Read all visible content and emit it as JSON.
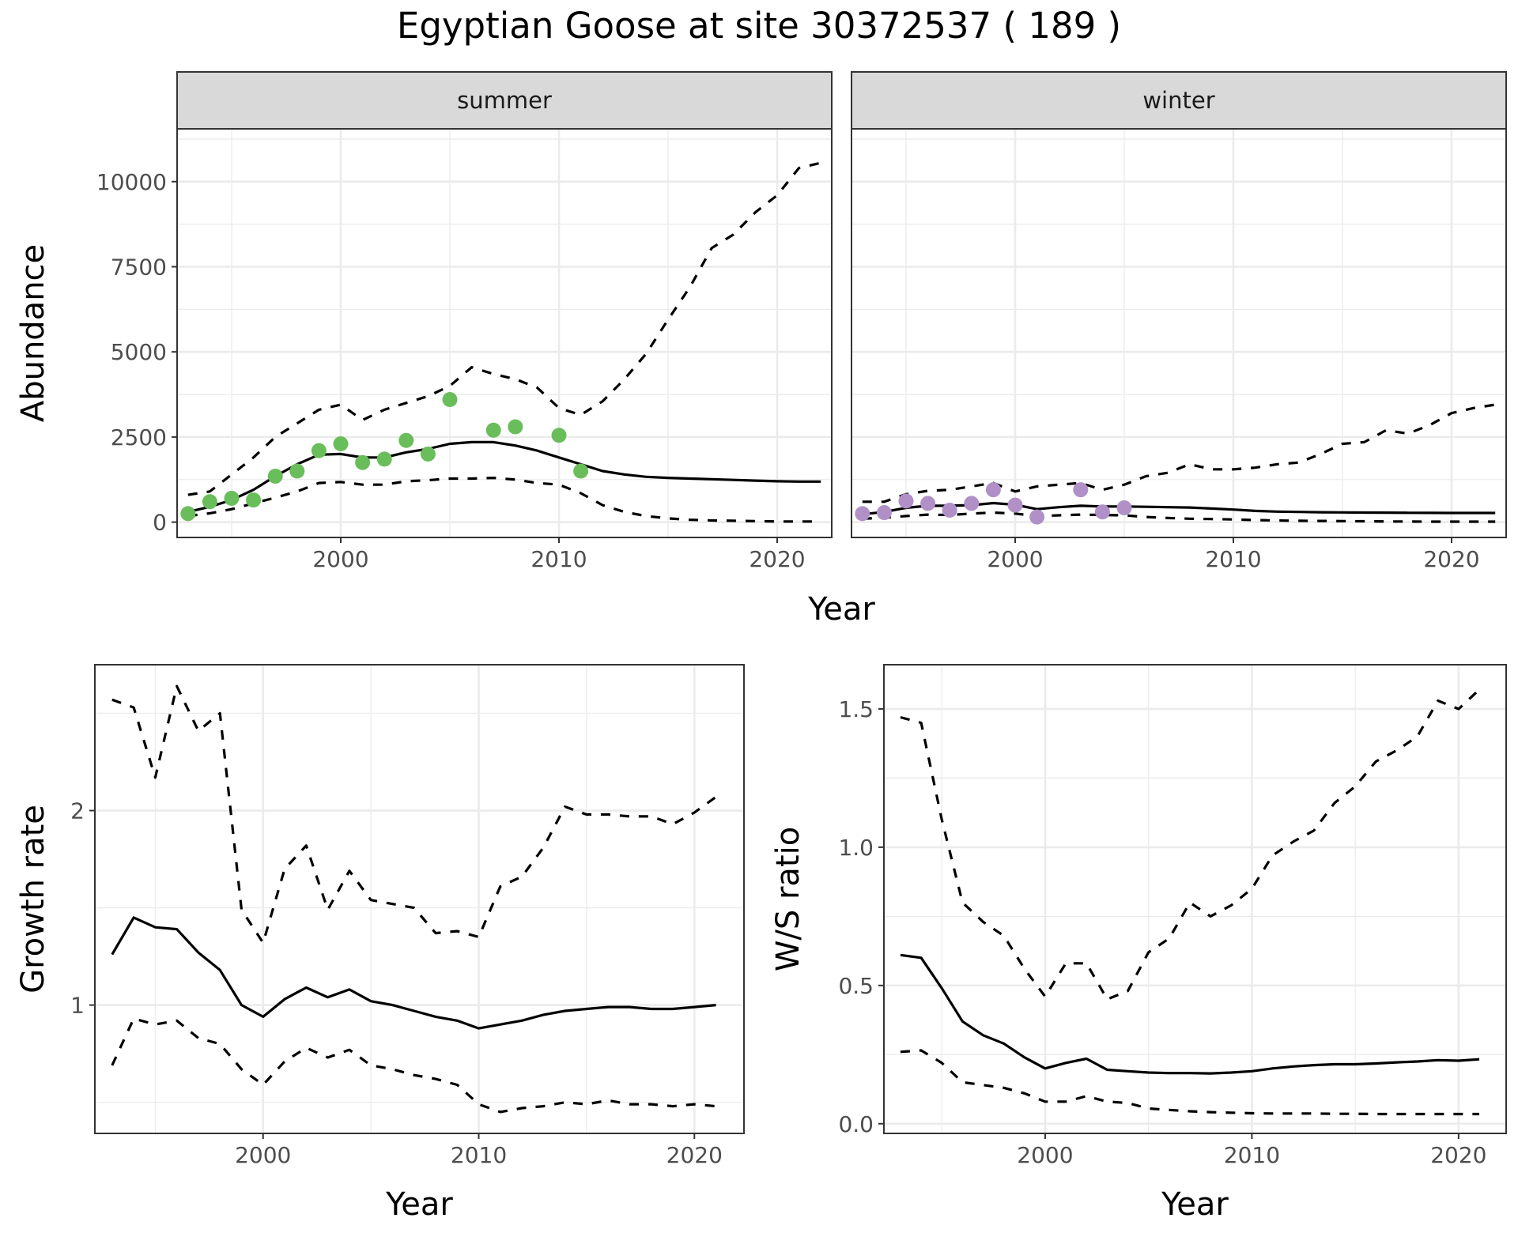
{
  "title": "Egyptian Goose at site 30372537 ( 189 )",
  "chart_data": [
    {
      "type": "line",
      "panel": "abundance",
      "facets": [
        "summer",
        "winter"
      ],
      "xlabel": "Year",
      "ylabel": "Abundance",
      "xlim": [
        1992.5,
        2022.5
      ],
      "ylim": [
        -450,
        11550
      ],
      "x_ticks": [
        2000,
        2010,
        2020
      ],
      "y_ticks": [
        0,
        2500,
        5000,
        7500,
        10000
      ],
      "grid": true,
      "facet_data": [
        {
          "facet": "summer",
          "point_color": "#6abd5b",
          "observed": {
            "x": [
              1993,
              1994,
              1995,
              1996,
              1997,
              1998,
              1999,
              2000,
              2001,
              2002,
              2003,
              2004,
              2005,
              2007,
              2008,
              2010,
              2011
            ],
            "y": [
              250,
              600,
              700,
              650,
              1350,
              1500,
              2100,
              2300,
              1750,
              1850,
              2400,
              2000,
              3600,
              2700,
              2800,
              2550,
              1500
            ]
          },
          "fit": {
            "x": [
              1993,
              1994,
              1995,
              1996,
              1997,
              1998,
              1999,
              2000,
              2001,
              2002,
              2003,
              2004,
              2005,
              2006,
              2007,
              2008,
              2009,
              2010,
              2011,
              2012,
              2013,
              2014,
              2015,
              2016,
              2017,
              2018,
              2019,
              2020,
              2021,
              2022
            ],
            "y": [
              300,
              450,
              650,
              950,
              1350,
              1700,
              1980,
              2000,
              1900,
              1900,
              2050,
              2150,
              2300,
              2350,
              2350,
              2250,
              2100,
              1900,
              1700,
              1500,
              1400,
              1330,
              1300,
              1280,
              1260,
              1240,
              1220,
              1200,
              1190,
              1190
            ]
          },
          "lower": {
            "x": [
              1993,
              1994,
              1995,
              1996,
              1997,
              1998,
              1999,
              2000,
              2001,
              2002,
              2003,
              2004,
              2005,
              2006,
              2007,
              2008,
              2009,
              2010,
              2011,
              2012,
              2013,
              2014,
              2015,
              2016,
              2017,
              2018,
              2019,
              2020,
              2021,
              2022
            ],
            "y": [
              180,
              260,
              380,
              550,
              720,
              900,
              1150,
              1180,
              1100,
              1100,
              1200,
              1230,
              1280,
              1280,
              1300,
              1250,
              1150,
              1100,
              850,
              500,
              300,
              180,
              110,
              70,
              50,
              40,
              30,
              20,
              20,
              20
            ]
          },
          "upper": {
            "x": [
              1993,
              1994,
              1995,
              1996,
              1997,
              1998,
              1999,
              2000,
              2001,
              2002,
              2003,
              2004,
              2005,
              2006,
              2007,
              2008,
              2009,
              2010,
              2011,
              2012,
              2013,
              2014,
              2015,
              2016,
              2017,
              2018,
              2019,
              2020,
              2021,
              2022
            ],
            "y": [
              800,
              900,
              1400,
              1900,
              2500,
              2900,
              3300,
              3450,
              3000,
              3300,
              3500,
              3700,
              4000,
              4550,
              4350,
              4200,
              3950,
              3350,
              3150,
              3550,
              4200,
              4950,
              5950,
              6900,
              8050,
              8450,
              9100,
              9600,
              10400,
              10550
            ]
          }
        },
        {
          "facet": "winter",
          "point_color": "#b190c7",
          "observed": {
            "x": [
              1993,
              1994,
              1995,
              1996,
              1997,
              1998,
              1999,
              2000,
              2001,
              2003,
              2004,
              2005
            ],
            "y": [
              250,
              280,
              620,
              550,
              350,
              550,
              950,
              500,
              150,
              950,
              300,
              420
            ]
          },
          "fit": {
            "x": [
              1993,
              1994,
              1995,
              1996,
              1997,
              1998,
              1999,
              2000,
              2001,
              2002,
              2003,
              2004,
              2005,
              2006,
              2007,
              2008,
              2009,
              2010,
              2011,
              2012,
              2013,
              2014,
              2015,
              2016,
              2017,
              2018,
              2019,
              2020,
              2021,
              2022
            ],
            "y": [
              230,
              300,
              420,
              480,
              480,
              500,
              560,
              510,
              380,
              440,
              480,
              460,
              460,
              450,
              440,
              430,
              400,
              370,
              330,
              310,
              300,
              290,
              285,
              280,
              278,
              275,
              272,
              270,
              270,
              270
            ]
          },
          "lower": {
            "x": [
              1993,
              1994,
              1995,
              1996,
              1997,
              1998,
              1999,
              2000,
              2001,
              2002,
              2003,
              2004,
              2005,
              2006,
              2007,
              2008,
              2009,
              2010,
              2011,
              2012,
              2013,
              2014,
              2015,
              2016,
              2017,
              2018,
              2019,
              2020,
              2021,
              2022
            ],
            "y": [
              100,
              130,
              180,
              220,
              210,
              250,
              280,
              250,
              180,
              200,
              220,
              210,
              200,
              150,
              120,
              100,
              90,
              80,
              60,
              50,
              40,
              35,
              30,
              25,
              20,
              20,
              15,
              15,
              15,
              15
            ]
          },
          "upper": {
            "x": [
              1993,
              1994,
              1995,
              1996,
              1997,
              1998,
              1999,
              2000,
              2001,
              2002,
              2003,
              2004,
              2005,
              2006,
              2007,
              2008,
              2009,
              2010,
              2011,
              2012,
              2013,
              2014,
              2015,
              2016,
              2017,
              2018,
              2019,
              2020,
              2021,
              2022
            ],
            "y": [
              600,
              600,
              820,
              920,
              950,
              1050,
              1150,
              900,
              1050,
              1100,
              1150,
              950,
              1100,
              1350,
              1450,
              1700,
              1550,
              1550,
              1600,
              1700,
              1750,
              2000,
              2300,
              2350,
              2700,
              2600,
              2850,
              3200,
              3350,
              3450
            ]
          }
        }
      ]
    },
    {
      "type": "line",
      "panel": "growth",
      "xlabel": "Year",
      "ylabel": "Growth rate",
      "xlim": [
        1992.2,
        2022.3
      ],
      "ylim": [
        0.34,
        2.75
      ],
      "x_ticks": [
        2000,
        2010,
        2020
      ],
      "y_ticks": [
        1,
        2
      ],
      "grid": true,
      "fit": {
        "x": [
          1993,
          1994,
          1995,
          1996,
          1997,
          1998,
          1999,
          2000,
          2001,
          2002,
          2003,
          2004,
          2005,
          2006,
          2007,
          2008,
          2009,
          2010,
          2011,
          2012,
          2013,
          2014,
          2015,
          2016,
          2017,
          2018,
          2019,
          2020,
          2021
        ],
        "y": [
          1.26,
          1.45,
          1.4,
          1.39,
          1.27,
          1.18,
          1.0,
          0.94,
          1.03,
          1.09,
          1.04,
          1.08,
          1.02,
          1.0,
          0.97,
          0.94,
          0.92,
          0.88,
          0.9,
          0.92,
          0.95,
          0.97,
          0.98,
          0.99,
          0.99,
          0.98,
          0.98,
          0.99,
          1.0
        ]
      },
      "lower": {
        "x": [
          1993,
          1994,
          1995,
          1996,
          1997,
          1998,
          1999,
          2000,
          2001,
          2002,
          2003,
          2004,
          2005,
          2006,
          2007,
          2008,
          2009,
          2010,
          2011,
          2012,
          2013,
          2014,
          2015,
          2016,
          2017,
          2018,
          2019,
          2020,
          2021
        ],
        "y": [
          0.69,
          0.93,
          0.9,
          0.92,
          0.83,
          0.8,
          0.67,
          0.59,
          0.71,
          0.78,
          0.73,
          0.77,
          0.69,
          0.67,
          0.64,
          0.62,
          0.59,
          0.49,
          0.45,
          0.47,
          0.48,
          0.5,
          0.49,
          0.51,
          0.49,
          0.49,
          0.48,
          0.49,
          0.48
        ]
      },
      "upper": {
        "x": [
          1993,
          1994,
          1995,
          1996,
          1997,
          1998,
          1999,
          2000,
          2001,
          2002,
          2003,
          2004,
          2005,
          2006,
          2007,
          2008,
          2009,
          2010,
          2011,
          2012,
          2013,
          2014,
          2015,
          2016,
          2017,
          2018,
          2019,
          2020,
          2021
        ],
        "y": [
          2.57,
          2.53,
          2.17,
          2.64,
          2.41,
          2.5,
          1.49,
          1.32,
          1.7,
          1.82,
          1.49,
          1.69,
          1.54,
          1.52,
          1.5,
          1.37,
          1.38,
          1.35,
          1.61,
          1.66,
          1.81,
          2.02,
          1.98,
          1.98,
          1.97,
          1.97,
          1.93,
          1.99,
          2.07
        ]
      }
    },
    {
      "type": "line",
      "panel": "ratio",
      "xlabel": "Year",
      "ylabel": "W/S ratio",
      "xlim": [
        1992.2,
        2022.3
      ],
      "ylim": [
        -0.035,
        1.66
      ],
      "x_ticks": [
        2000,
        2010,
        2020
      ],
      "y_ticks": [
        0.0,
        0.5,
        1.0,
        1.5
      ],
      "y_tick_labels": [
        "0.0",
        "0.5",
        "1.0",
        "1.5"
      ],
      "grid": true,
      "fit": {
        "x": [
          1993,
          1994,
          1995,
          1996,
          1997,
          1998,
          1999,
          2000,
          2001,
          2002,
          2003,
          2004,
          2005,
          2006,
          2007,
          2008,
          2009,
          2010,
          2011,
          2012,
          2013,
          2014,
          2015,
          2016,
          2017,
          2018,
          2019,
          2020,
          2021
        ],
        "y": [
          0.61,
          0.6,
          0.49,
          0.37,
          0.32,
          0.29,
          0.24,
          0.2,
          0.22,
          0.235,
          0.195,
          0.19,
          0.185,
          0.183,
          0.183,
          0.182,
          0.185,
          0.19,
          0.2,
          0.207,
          0.212,
          0.215,
          0.215,
          0.218,
          0.222,
          0.225,
          0.23,
          0.228,
          0.233
        ]
      },
      "lower": {
        "x": [
          1993,
          1994,
          1995,
          1996,
          1997,
          1998,
          1999,
          2000,
          2001,
          2002,
          2003,
          2004,
          2005,
          2006,
          2007,
          2008,
          2009,
          2010,
          2011,
          2012,
          2013,
          2014,
          2015,
          2016,
          2017,
          2018,
          2019,
          2020,
          2021
        ],
        "y": [
          0.26,
          0.265,
          0.22,
          0.15,
          0.14,
          0.13,
          0.11,
          0.08,
          0.08,
          0.1,
          0.08,
          0.075,
          0.055,
          0.05,
          0.045,
          0.042,
          0.04,
          0.038,
          0.037,
          0.037,
          0.037,
          0.036,
          0.036,
          0.035,
          0.035,
          0.035,
          0.035,
          0.035,
          0.035
        ]
      },
      "upper": {
        "x": [
          1993,
          1994,
          1995,
          1996,
          1997,
          1998,
          1999,
          2000,
          2001,
          2002,
          2003,
          2004,
          2005,
          2006,
          2007,
          2008,
          2009,
          2010,
          2011,
          2012,
          2013,
          2014,
          2015,
          2016,
          2017,
          2018,
          2019,
          2020,
          2021
        ],
        "y": [
          1.47,
          1.45,
          1.1,
          0.8,
          0.73,
          0.68,
          0.56,
          0.46,
          0.58,
          0.58,
          0.45,
          0.48,
          0.62,
          0.67,
          0.8,
          0.75,
          0.79,
          0.85,
          0.97,
          1.02,
          1.06,
          1.16,
          1.22,
          1.31,
          1.35,
          1.4,
          1.53,
          1.5,
          1.57
        ]
      }
    }
  ]
}
